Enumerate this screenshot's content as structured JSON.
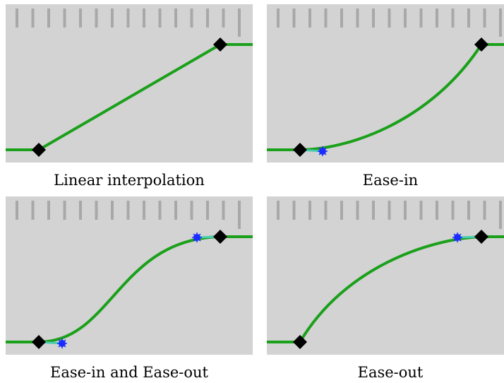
{
  "colors": {
    "panel_bg": "#d3d3d3",
    "ruler_tick": "#a8a8a8",
    "curve": "#1aa01a",
    "tangent": "#48cdb0",
    "tangent_handle": "#1a2cff",
    "keyframe": "#000000"
  },
  "panels": [
    {
      "caption": "Linear interpolation",
      "curve_type": "linear"
    },
    {
      "caption": "Ease-in",
      "curve_type": "ease-in"
    },
    {
      "caption": "Ease-in and Ease-out",
      "curve_type": "ease-in-out"
    },
    {
      "caption": "Ease-out",
      "curve_type": "ease-out"
    }
  ]
}
